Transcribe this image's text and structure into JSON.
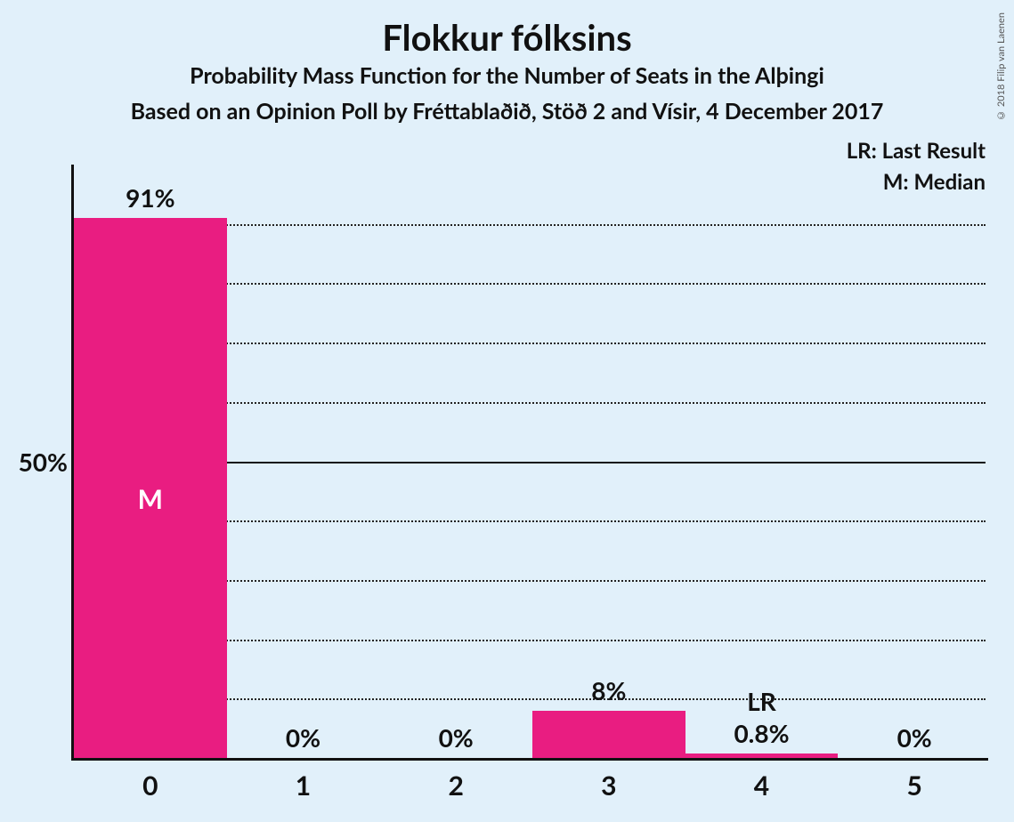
{
  "title": "Flokkur fólksins",
  "subtitle": "Probability Mass Function for the Number of Seats in the Alþingi",
  "subtitle2": "Based on an Opinion Poll by Fréttablaðið, Stöð 2 and Vísir, 4 December 2017",
  "legend_lr": "LR: Last Result",
  "legend_m": "M: Median",
  "credit": "© 2018 Filip van Laenen",
  "chart": {
    "type": "bar",
    "background_color": "#e1f0fa",
    "bar_color": "#e91d81",
    "axis_color": "#111111",
    "grid_color": "#222222",
    "categories": [
      "0",
      "1",
      "2",
      "3",
      "4",
      "5"
    ],
    "values": [
      91,
      0,
      0,
      8,
      0.8,
      0
    ],
    "value_labels": [
      "91%",
      "0%",
      "0%",
      "8%",
      "0.8%",
      "0%"
    ],
    "median_index": 0,
    "median_marker": "M",
    "lr_index": 4,
    "lr_marker": "LR",
    "ylim_max": 100,
    "yticks": [
      10,
      20,
      30,
      40,
      50,
      60,
      70,
      80,
      90
    ],
    "ytick_major": 50,
    "ytick_label": "50%",
    "title_fontsize": 40,
    "subtitle_fontsize": 25,
    "label_fontsize": 28,
    "bar_width_ratio": 0.99
  }
}
